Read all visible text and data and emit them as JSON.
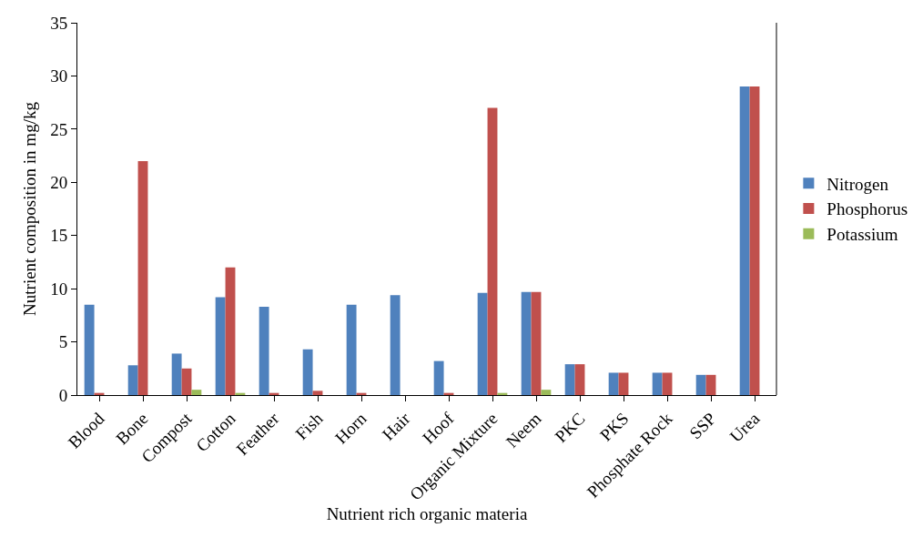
{
  "chart_data": {
    "type": "bar",
    "xlabel": "Nutrient rich organic materia",
    "ylabel": "Nutrient composition in mg/kg",
    "categories": [
      "Blood",
      "Bone",
      "Compost",
      "Cotton",
      "Feather",
      "Fish",
      "Horn",
      "Hair",
      "Hoof",
      "Organic Mixture",
      "Neem",
      "PKC",
      "PKS",
      "Phosphate Rock",
      "SSP",
      "Urea"
    ],
    "series": [
      {
        "name": "Nitrogen",
        "color": "#4f81bd",
        "values": [
          8.5,
          2.8,
          3.9,
          9.2,
          8.3,
          4.3,
          8.5,
          9.4,
          3.2,
          9.6,
          9.7,
          2.9,
          2.1,
          2.1,
          1.9,
          29
        ]
      },
      {
        "name": "Phosphorus",
        "color": "#c0504d",
        "values": [
          0.2,
          22,
          2.5,
          12,
          0.2,
          0.4,
          0.2,
          0,
          0.2,
          27,
          9.7,
          2.9,
          2.1,
          2.1,
          1.9,
          29
        ]
      },
      {
        "name": "Potassium",
        "color": "#9bbb59",
        "values": [
          0,
          0,
          0.5,
          0.2,
          0,
          0,
          0,
          0,
          0,
          0.2,
          0.5,
          0,
          0,
          0,
          0,
          0
        ]
      }
    ],
    "ylim": [
      0,
      35
    ],
    "yticks": [
      0,
      5,
      10,
      15,
      20,
      25,
      30,
      35
    ],
    "grid": false,
    "legend": "right"
  }
}
